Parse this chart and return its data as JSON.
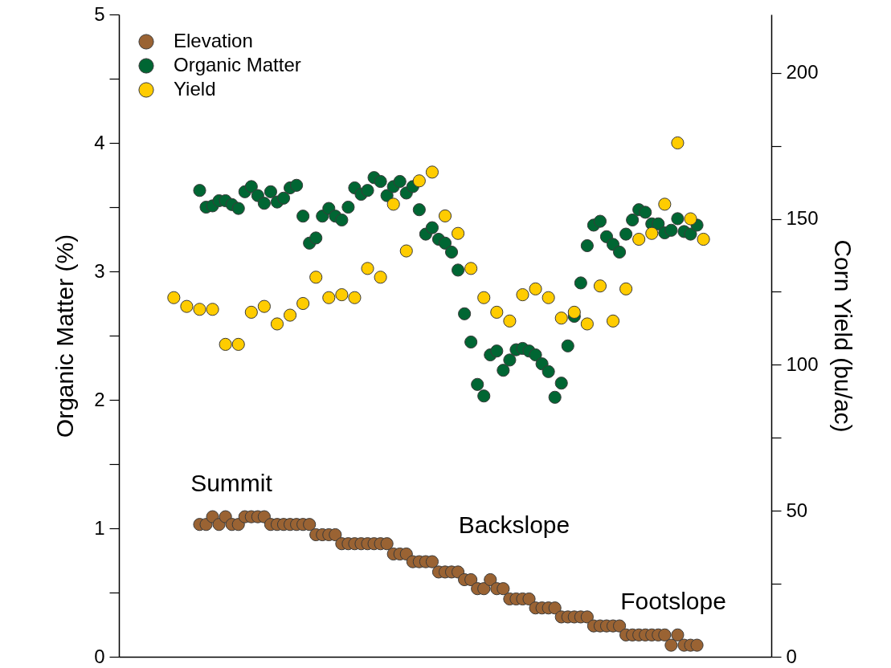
{
  "chart_data": {
    "type": "scatter",
    "categories": [
      null,
      null,
      null,
      null,
      null,
      null,
      null,
      null,
      null,
      null,
      null,
      null,
      null,
      null,
      null,
      null,
      null,
      null,
      null,
      null,
      null,
      null,
      null,
      null,
      null,
      null,
      null,
      null,
      null,
      null,
      null,
      null,
      null,
      null,
      null,
      null,
      null,
      null,
      null,
      null,
      null,
      null,
      null,
      null,
      null,
      null,
      null,
      null,
      null,
      null,
      null,
      null,
      null,
      null,
      null,
      null,
      null,
      null,
      null,
      null,
      null,
      null,
      null,
      null,
      null,
      null,
      null,
      null,
      null,
      null,
      null,
      null,
      null,
      null,
      null,
      null,
      null,
      null,
      null,
      null,
      null,
      null,
      null,
      null,
      null,
      null,
      null,
      null,
      null,
      null,
      null,
      null,
      null,
      null,
      null,
      null,
      null,
      null,
      null,
      null,
      null
    ],
    "ylabel": "Organic Matter (%)",
    "y2label": "Corn Yield (bu/ac)",
    "ylim": [
      0,
      5
    ],
    "yticks": [
      0,
      {
        "value": 0.5,
        "label": null
      },
      1,
      {
        "value": 1.5,
        "label": null
      },
      2,
      {
        "value": 2.5,
        "label": null
      },
      3,
      {
        "value": 3.5,
        "label": null
      },
      4,
      {
        "value": 4.5,
        "label": null
      },
      5
    ],
    "y2lim": [
      0,
      220
    ],
    "y2ticks": [
      0,
      {
        "value": 25,
        "label": null
      },
      50,
      {
        "value": 75,
        "label": null
      },
      100,
      {
        "value": 125,
        "label": null
      },
      150,
      {
        "value": 175,
        "label": null
      },
      200
    ],
    "tick_labels": "y",
    "legend": "top left",
    "marker": "circle",
    "annotations": [
      "Summit",
      "Backslope",
      "Footslope"
    ],
    "series": [
      {
        "name": "Elevation",
        "color": "#9a6333",
        "values": [
          null,
          null,
          null,
          null,
          null,
          null,
          null,
          null,
          null,
          null,
          null,
          null,
          1.03,
          1.03,
          1.09,
          1.03,
          1.09,
          1.03,
          1.03,
          1.09,
          1.09,
          1.09,
          1.09,
          1.03,
          1.03,
          1.03,
          1.03,
          1.03,
          1.03,
          1.03,
          0.95,
          0.95,
          0.95,
          0.95,
          0.88,
          0.88,
          0.88,
          0.88,
          0.88,
          0.88,
          0.88,
          0.88,
          0.8,
          0.8,
          0.8,
          0.74,
          0.74,
          0.74,
          0.74,
          0.66,
          0.66,
          0.66,
          0.66,
          0.6,
          0.6,
          0.53,
          0.53,
          0.6,
          0.53,
          0.53,
          0.45,
          0.45,
          0.45,
          0.45,
          0.38,
          0.38,
          0.38,
          0.38,
          0.31,
          0.31,
          0.31,
          0.31,
          0.31,
          0.24,
          0.24,
          0.24,
          0.24,
          0.24,
          0.17,
          0.17,
          0.17,
          0.17,
          0.17,
          0.17,
          0.17,
          0.09,
          0.17,
          0.09,
          0.09,
          0.09,
          null,
          null,
          null,
          null,
          null,
          null,
          null,
          null,
          null,
          null,
          null
        ]
      },
      {
        "name": "Organic Matter",
        "color": "#006633",
        "values": [
          null,
          null,
          null,
          null,
          null,
          null,
          null,
          null,
          null,
          null,
          null,
          null,
          3.63,
          3.5,
          3.51,
          3.55,
          3.55,
          3.52,
          3.49,
          3.62,
          3.66,
          3.59,
          3.53,
          3.62,
          3.54,
          3.57,
          3.65,
          3.67,
          3.43,
          3.22,
          3.26,
          3.43,
          3.49,
          3.43,
          3.4,
          3.5,
          3.65,
          3.6,
          3.63,
          3.73,
          3.7,
          3.59,
          3.66,
          3.7,
          3.61,
          3.66,
          3.48,
          3.29,
          3.34,
          3.25,
          3.22,
          3.15,
          3.01,
          2.67,
          2.45,
          2.12,
          2.03,
          2.35,
          2.38,
          2.23,
          2.31,
          2.39,
          2.4,
          2.38,
          2.35,
          2.28,
          2.22,
          2.02,
          2.13,
          2.42,
          2.65,
          2.91,
          3.2,
          3.36,
          3.39,
          3.27,
          3.21,
          3.15,
          3.29,
          3.4,
          3.48,
          3.46,
          3.37,
          3.37,
          3.3,
          3.32,
          3.41,
          3.31,
          3.29,
          3.36,
          null,
          null,
          null,
          null,
          null,
          null,
          null,
          null,
          null,
          null,
          null
        ]
      },
      {
        "name": "Yield",
        "color": "#ffcc00",
        "axis": "y2",
        "values": [
          null,
          null,
          null,
          null,
          null,
          null,
          null,
          null,
          123,
          null,
          120,
          null,
          119,
          null,
          119,
          null,
          107,
          null,
          107,
          null,
          118,
          null,
          120,
          null,
          114,
          null,
          117,
          null,
          121,
          null,
          130,
          null,
          123,
          null,
          124,
          null,
          123,
          null,
          133,
          null,
          130,
          null,
          155,
          null,
          139,
          null,
          163,
          null,
          166,
          null,
          151,
          null,
          145,
          null,
          133,
          null,
          123,
          null,
          118,
          null,
          115,
          null,
          124,
          null,
          126,
          null,
          123,
          null,
          116,
          null,
          118,
          null,
          114,
          null,
          127,
          null,
          115,
          null,
          126,
          null,
          143,
          null,
          145,
          null,
          155,
          null,
          176,
          null,
          150,
          null,
          143,
          null,
          null,
          null,
          null,
          null,
          null,
          null,
          null,
          null,
          null
        ]
      }
    ]
  }
}
